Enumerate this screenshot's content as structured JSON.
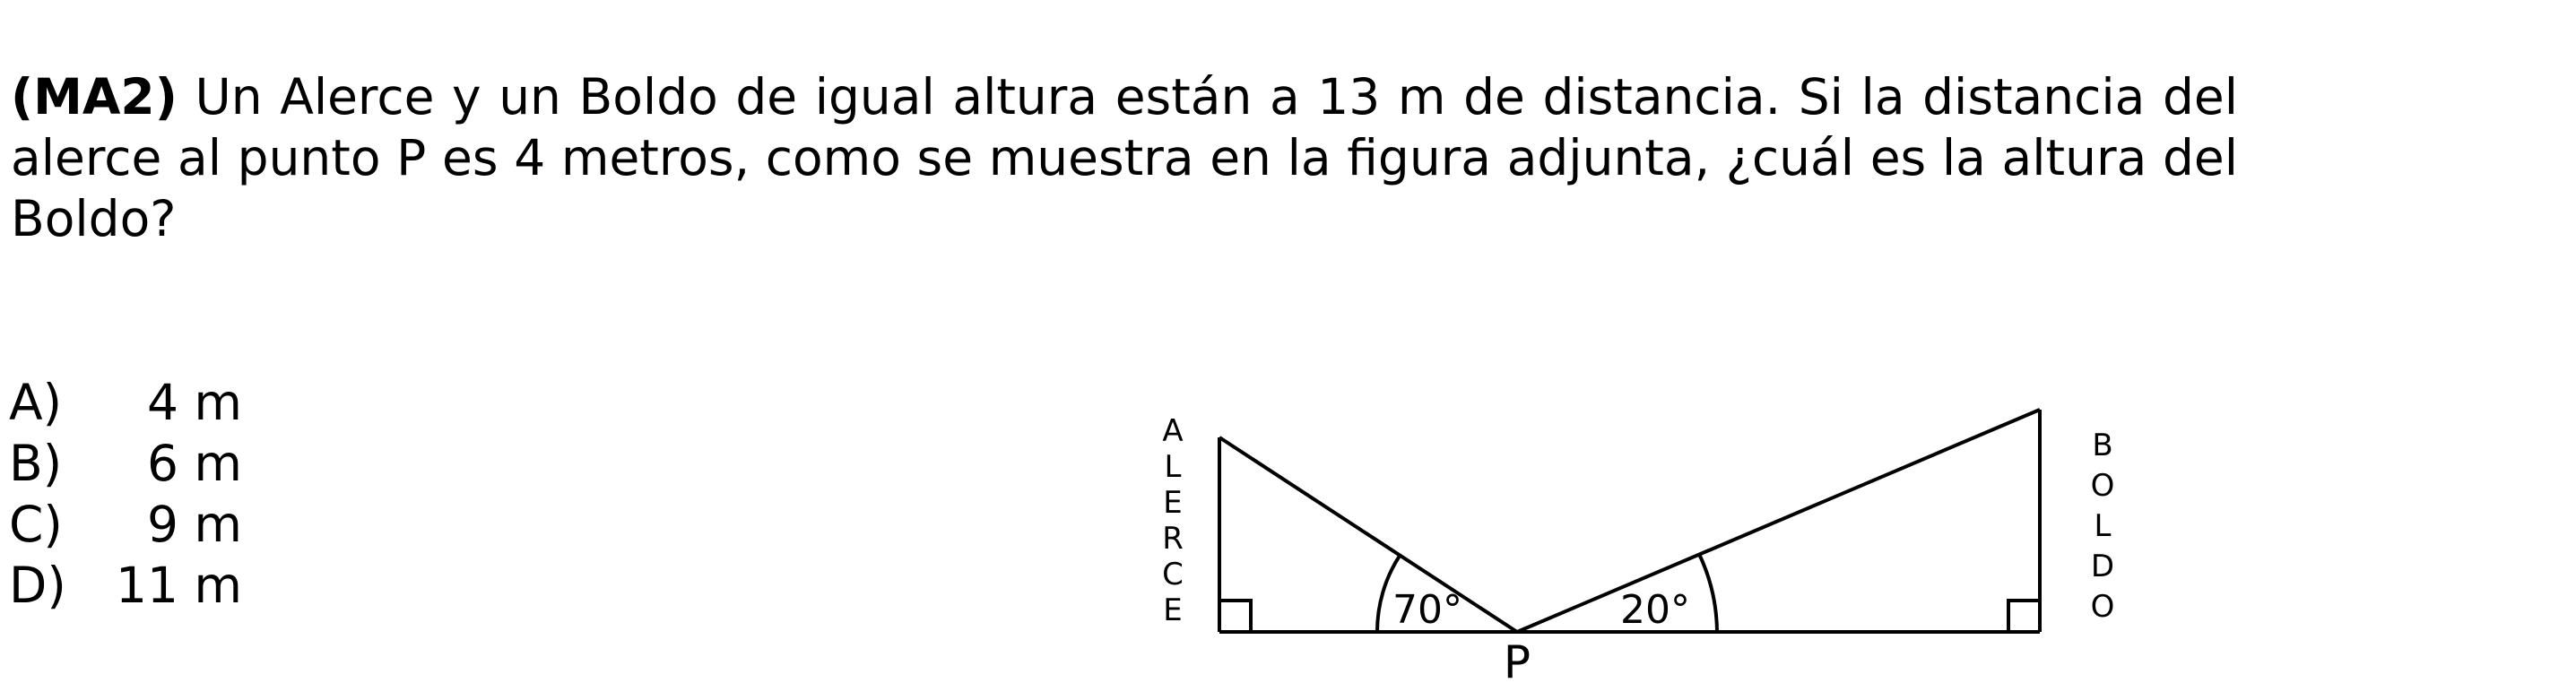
{
  "question": {
    "tag": "(MA2)",
    "text": " Un Alerce y un Boldo de igual altura están a 13 m de distancia. Si la distancia del alerce al punto P es 4 metros, como se muestra en la figura adjunta, ¿cuál es la altura del Boldo?"
  },
  "options": [
    {
      "letter": "A)",
      "value": "4 m"
    },
    {
      "letter": "B)",
      "value": "6 m"
    },
    {
      "letter": "C)",
      "value": "9 m"
    },
    {
      "letter": "D)",
      "value": "11 m"
    }
  ],
  "figure": {
    "left_label": [
      "A",
      "L",
      "E",
      "R",
      "C",
      "E"
    ],
    "right_label": [
      "B",
      "O",
      "L",
      "D",
      "O"
    ],
    "angle_left": "70°",
    "angle_right": "20°",
    "point": "P"
  }
}
